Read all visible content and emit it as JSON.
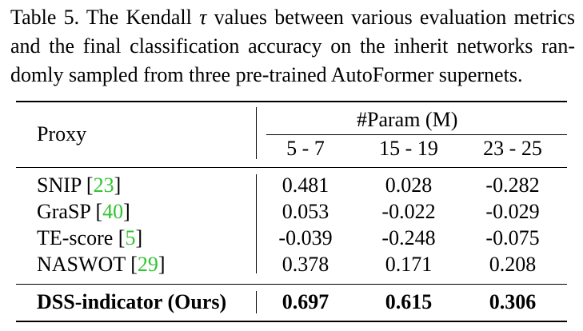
{
  "caption": {
    "line1_prefix": "Table 5. The Kendall ",
    "tau": "τ",
    "line1_suffix": " values between various evaluation metrics",
    "line2": "and the final classification accuracy on the inherit networks ran-",
    "line3": "domly sampled from three pre-trained AutoFormer supernets."
  },
  "table": {
    "proxy_header": "Proxy",
    "param_header": "#Param (M)",
    "columns": [
      "5 - 7",
      "15 - 19",
      "23 - 25"
    ],
    "rows": [
      {
        "name": "SNIP ",
        "cite": "23",
        "values": [
          "0.481",
          "0.028",
          "-0.282"
        ]
      },
      {
        "name": "GraSP ",
        "cite": "40",
        "values": [
          "0.053",
          "-0.022",
          "-0.029"
        ]
      },
      {
        "name": "TE-score ",
        "cite": "5",
        "values": [
          "-0.039",
          "-0.248",
          "-0.075"
        ]
      },
      {
        "name": "NASWOT ",
        "cite": "29",
        "values": [
          "0.378",
          "0.171",
          "0.208"
        ]
      }
    ],
    "ours": {
      "name": "DSS-indicator (Ours)",
      "values": [
        "0.697",
        "0.615",
        "0.306"
      ]
    }
  }
}
